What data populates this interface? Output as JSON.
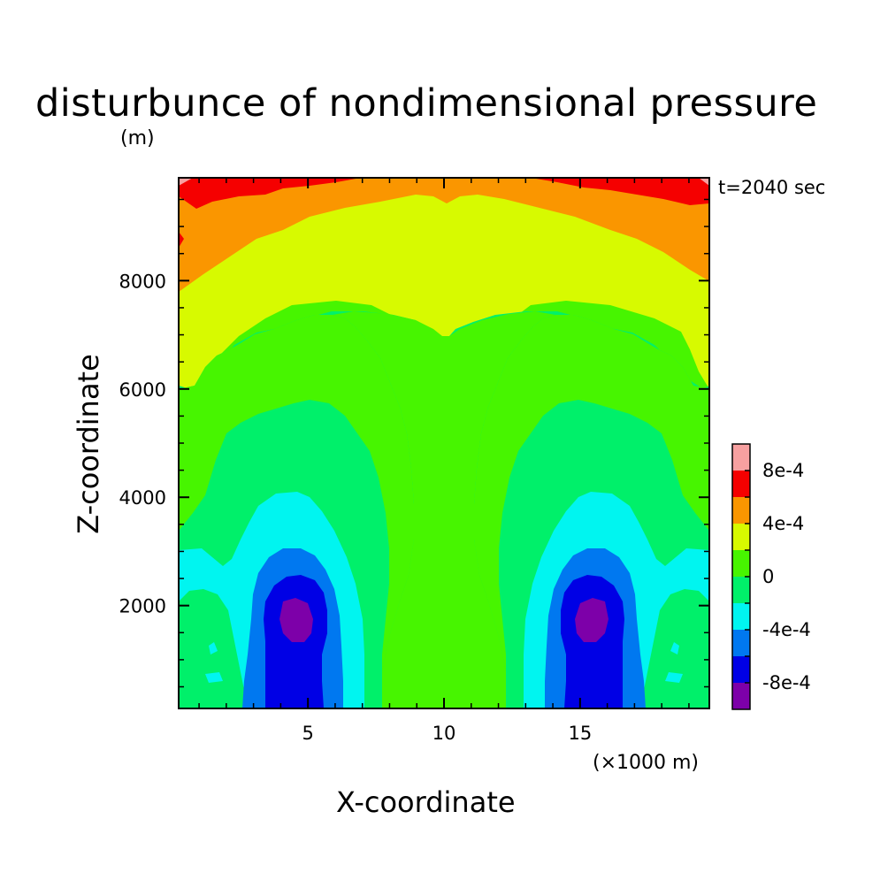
{
  "title": "disturbunce of nondimensional pressure",
  "z_unit": "(m)",
  "time_label": "t=2040 sec",
  "x_unit": "(×1000 m)",
  "colors": {
    "lt_m8e-4": "#7d00a9",
    "m8e-4": "#0000e5",
    "m6e-4": "#0078f0",
    "m4e-4": "#00f5f0",
    "m2e-4": "#00f06a",
    "zero": "#47f500",
    "p2e-4": "#d7fa00",
    "p4e-4": "#fa9600",
    "p6e-4": "#f50000",
    "p8e-4": "#f7a0a0"
  },
  "chart_data": {
    "type": "heatmap",
    "title": "disturbunce of nondimensional pressure",
    "xlabel": "X-coordinate",
    "ylabel": "Z-coordinate",
    "x_unit": "(×1000 m)",
    "y_unit": "(m)",
    "annotation": "t=2040 sec",
    "xlim": [
      0.25,
      19.75
    ],
    "ylim": [
      100,
      9900
    ],
    "x_ticks": [
      "5",
      "10",
      "15"
    ],
    "y_ticks": [
      "2000",
      "4000",
      "6000",
      "8000"
    ],
    "colorbar": {
      "levels": [
        -0.001,
        -0.0008,
        -0.0006,
        -0.0004,
        -0.0002,
        0,
        0.0002,
        0.0004,
        0.0006,
        0.0008,
        0.001
      ],
      "labels": [
        "8e-4",
        "4e-4",
        "0",
        "-4e-4",
        "-8e-4"
      ],
      "colors": [
        "#7d00a9",
        "#0000e5",
        "#0078f0",
        "#00f5f0",
        "#00f06a",
        "#47f500",
        "#d7fa00",
        "#fa9600",
        "#f50000",
        "#f7a0a0"
      ]
    },
    "features": [
      {
        "name": "minimum",
        "x": 4.6,
        "z": 1700,
        "value_range": "< -8e-4"
      },
      {
        "name": "minimum",
        "x": 15.8,
        "z": 1700,
        "value_range": "< -8e-4"
      },
      {
        "name": "maximum",
        "x": 1.5,
        "z": 9800,
        "value_range": "6e-4 to 8e-4"
      },
      {
        "name": "maximum",
        "x": 18.5,
        "z": 9800,
        "value_range": "6e-4 to 1e-3"
      }
    ]
  }
}
